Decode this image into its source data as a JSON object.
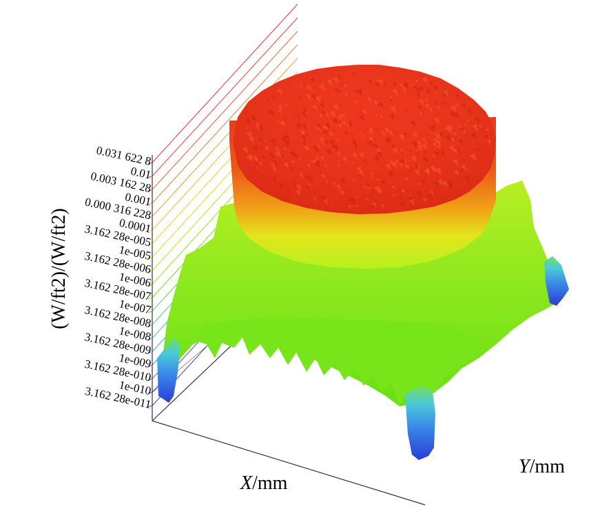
{
  "chart_data": {
    "type": "surface",
    "zlabel": "(W/ft2)/(W/ft2)",
    "xlabel": {
      "var": "X",
      "unit": "/mm"
    },
    "ylabel": {
      "var": "Y",
      "unit": "/mm"
    },
    "z_scale": "log",
    "zlim": [
      3.16228e-11,
      0.0316228
    ],
    "z_ticks": [
      "0.031 622 8",
      "0.01",
      "0.003 162 28",
      "0.001",
      "0.000 316 228",
      "0.0001",
      "3.162 28e-005",
      "1e-005",
      "3.162 28e-006",
      "1e-006",
      "3.162 28e-007",
      "1e-007",
      "3.162 28e-008",
      "1e-008",
      "3.162 28e-009",
      "1e-009",
      "3.162 28e-010",
      "1e-010",
      "3.162 28e-011"
    ],
    "tick_colors": [
      "#e8303c",
      "#e8403a",
      "#ea5a36",
      "#ee7a30",
      "#f29a2a",
      "#f2b828",
      "#e8d020",
      "#d2e018",
      "#b8e818",
      "#96e41c",
      "#74dc2a",
      "#5ed24a",
      "#4ac888",
      "#3cbcc8",
      "#3aa2e0",
      "#3a86e6",
      "#3a6ae2",
      "#3a50da",
      "#3a3ad0"
    ],
    "surface_description": {
      "plateau_level": 0.01,
      "background_level": 1e-07,
      "edge_dips_level": 1e-10
    }
  }
}
